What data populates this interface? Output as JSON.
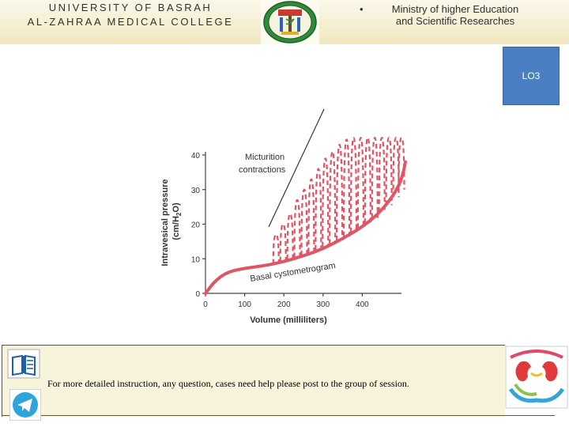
{
  "header": {
    "university": "UNIVERSITY OF BASRAH",
    "college": "AL-ZAHRAA MEDICAL COLLEGE",
    "bullet": "•",
    "ministry_line1": "Ministry of higher Education",
    "ministry_line2": "and Scientific Researches"
  },
  "lo_badge": "LO3",
  "footer": {
    "text": "For more detailed instruction, any question, cases need help please post to the group of session."
  },
  "icons": {
    "college_logo": "college-seal-icon",
    "book": "book-icon",
    "telegram": "telegram-icon",
    "kidney": "kidney-logo-icon"
  },
  "colors": {
    "curve": "#e05563",
    "lo_badge": "#4a7fc2",
    "header_bg": "#f4ecc8"
  },
  "chart_data": {
    "type": "line",
    "xlabel": "Volume (milliliters)",
    "ylabel": "Intravesical pressure (cm/H2O)",
    "ylabel_parts": [
      "Intravesical pressure",
      "(cm/H",
      "2",
      "O)"
    ],
    "xlim": [
      0,
      500
    ],
    "ylim": [
      0,
      40
    ],
    "x_ticks": [
      "0",
      "100",
      "200",
      "300",
      "400"
    ],
    "y_ticks": [
      "0",
      "10",
      "20",
      "30",
      "40"
    ],
    "annotations": [
      "Micturition contractions",
      "Basal cystometrogram"
    ],
    "annotation_lines": [
      "Micturition",
      "contractions"
    ],
    "series": [
      {
        "name": "Basal cystometrogram",
        "style": "solid",
        "x": [
          0,
          20,
          40,
          60,
          80,
          100,
          130,
          160,
          200,
          240,
          280,
          320,
          360,
          390,
          420,
          440,
          460,
          480,
          495,
          505,
          510
        ],
        "y": [
          0,
          3,
          5,
          6.2,
          6.8,
          7.2,
          7.7,
          8.2,
          9.2,
          10.5,
          12,
          14,
          16.5,
          18.5,
          21,
          23,
          25.5,
          28.5,
          31.5,
          35,
          38
        ]
      },
      {
        "name": "Micturition contractions",
        "style": "dashed",
        "spikes": [
          {
            "x": 180,
            "base": 8.5,
            "peak": 17
          },
          {
            "x": 198,
            "base": 9.2,
            "peak": 20
          },
          {
            "x": 216,
            "base": 9.8,
            "peak": 23
          },
          {
            "x": 234,
            "base": 10.4,
            "peak": 27
          },
          {
            "x": 252,
            "base": 11,
            "peak": 30
          },
          {
            "x": 270,
            "base": 11.8,
            "peak": 33
          },
          {
            "x": 288,
            "base": 12.6,
            "peak": 36
          },
          {
            "x": 306,
            "base": 13.5,
            "peak": 39
          },
          {
            "x": 324,
            "base": 14.3,
            "peak": 41
          },
          {
            "x": 342,
            "base": 15.3,
            "peak": 43
          },
          {
            "x": 360,
            "base": 16.5,
            "peak": 44.5
          },
          {
            "x": 378,
            "base": 17.6,
            "peak": 45
          },
          {
            "x": 396,
            "base": 18.9,
            "peak": 45
          },
          {
            "x": 414,
            "base": 20.3,
            "peak": 45
          },
          {
            "x": 432,
            "base": 21.8,
            "peak": 45
          },
          {
            "x": 450,
            "base": 23.5,
            "peak": 45
          },
          {
            "x": 468,
            "base": 25.5,
            "peak": 45
          },
          {
            "x": 486,
            "base": 27.8,
            "peak": 45
          },
          {
            "x": 500,
            "base": 30,
            "peak": 45
          }
        ]
      }
    ]
  }
}
